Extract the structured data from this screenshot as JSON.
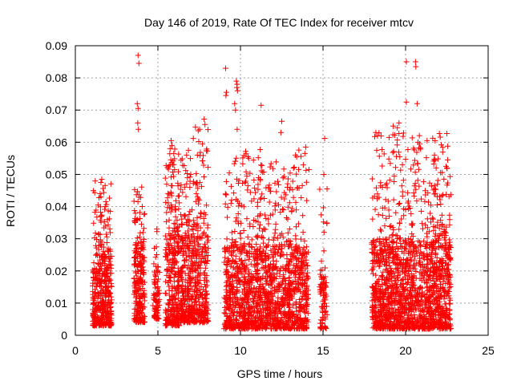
{
  "chart_data": {
    "type": "scatter",
    "title": "Day 146 of 2019, Rate Of TEC Index for receiver mtcv",
    "xlabel": "GPS time / hours",
    "ylabel": "ROTI / TECUs",
    "xlim": [
      0,
      25
    ],
    "ylim": [
      0,
      0.09
    ],
    "xticks": [
      0,
      5,
      10,
      15,
      20,
      25
    ],
    "xtick_labels": [
      "0",
      "5",
      "10",
      "15",
      "20",
      "25"
    ],
    "yticks": [
      0,
      0.01,
      0.02,
      0.03,
      0.04,
      0.05,
      0.06,
      0.07,
      0.08,
      0.09
    ],
    "ytick_labels": [
      "0",
      "0.01",
      "0.02",
      "0.03",
      "0.04",
      "0.05",
      "0.06",
      "0.07",
      "0.08",
      "0.09"
    ],
    "grid": true,
    "marker": "plus",
    "color": "#ff0000",
    "clusters": [
      {
        "x_start": 1.05,
        "x_end": 2.2,
        "y_low": 0.003,
        "y_bulk": 0.026,
        "y_max": 0.049,
        "count": 420
      },
      {
        "x_start": 3.55,
        "x_end": 4.2,
        "y_low": 0.004,
        "y_bulk": 0.03,
        "y_max": 0.047,
        "count": 260
      },
      {
        "x_start": 4.7,
        "x_end": 5.1,
        "y_low": 0.005,
        "y_bulk": 0.02,
        "y_max": 0.034,
        "count": 80
      },
      {
        "x_start": 5.45,
        "x_end": 6.3,
        "y_low": 0.003,
        "y_bulk": 0.035,
        "y_max": 0.06,
        "count": 320
      },
      {
        "x_start": 6.35,
        "x_end": 7.0,
        "y_low": 0.004,
        "y_bulk": 0.032,
        "y_max": 0.057,
        "count": 230
      },
      {
        "x_start": 7.0,
        "x_end": 8.05,
        "y_low": 0.004,
        "y_bulk": 0.035,
        "y_max": 0.067,
        "count": 330
      },
      {
        "x_start": 9.0,
        "x_end": 14.1,
        "y_low": 0.002,
        "y_bulk": 0.028,
        "y_max": 0.058,
        "count": 1500
      },
      {
        "x_start": 14.8,
        "x_end": 15.25,
        "y_low": 0.002,
        "y_bulk": 0.022,
        "y_max": 0.052,
        "count": 90
      },
      {
        "x_start": 17.95,
        "x_end": 22.75,
        "y_low": 0.002,
        "y_bulk": 0.03,
        "y_max": 0.063,
        "count": 1600
      }
    ],
    "outliers": [
      {
        "x": 3.8,
        "y": 0.087
      },
      {
        "x": 3.85,
        "y": 0.0845
      },
      {
        "x": 3.75,
        "y": 0.072
      },
      {
        "x": 3.8,
        "y": 0.0705
      },
      {
        "x": 3.78,
        "y": 0.066
      },
      {
        "x": 3.82,
        "y": 0.064
      },
      {
        "x": 4.05,
        "y": 0.04
      },
      {
        "x": 9.1,
        "y": 0.083
      },
      {
        "x": 9.15,
        "y": 0.0755
      },
      {
        "x": 9.12,
        "y": 0.0745
      },
      {
        "x": 9.75,
        "y": 0.079
      },
      {
        "x": 9.8,
        "y": 0.078
      },
      {
        "x": 9.78,
        "y": 0.077
      },
      {
        "x": 9.82,
        "y": 0.076
      },
      {
        "x": 9.65,
        "y": 0.072
      },
      {
        "x": 9.7,
        "y": 0.07
      },
      {
        "x": 9.8,
        "y": 0.064
      },
      {
        "x": 11.25,
        "y": 0.0715
      },
      {
        "x": 12.5,
        "y": 0.0665
      },
      {
        "x": 12.45,
        "y": 0.063
      },
      {
        "x": 15.1,
        "y": 0.0612
      },
      {
        "x": 15.05,
        "y": 0.05
      },
      {
        "x": 20.05,
        "y": 0.085
      },
      {
        "x": 20.6,
        "y": 0.085
      },
      {
        "x": 20.62,
        "y": 0.0835
      },
      {
        "x": 20.05,
        "y": 0.0725
      },
      {
        "x": 20.7,
        "y": 0.072
      },
      {
        "x": 19.25,
        "y": 0.065
      },
      {
        "x": 19.6,
        "y": 0.066
      },
      {
        "x": 19.5,
        "y": 0.0645
      },
      {
        "x": 18.2,
        "y": 0.063
      },
      {
        "x": 18.3,
        "y": 0.062
      },
      {
        "x": 18.25,
        "y": 0.0575
      },
      {
        "x": 19.0,
        "y": 0.0615
      },
      {
        "x": 20.75,
        "y": 0.06
      },
      {
        "x": 20.85,
        "y": 0.0595
      },
      {
        "x": 21.3,
        "y": 0.0605
      },
      {
        "x": 21.75,
        "y": 0.056
      },
      {
        "x": 22.45,
        "y": 0.0525
      },
      {
        "x": 22.5,
        "y": 0.052
      },
      {
        "x": 21.85,
        "y": 0.052
      },
      {
        "x": 19.65,
        "y": 0.0555
      },
      {
        "x": 10.45,
        "y": 0.0555
      },
      {
        "x": 10.5,
        "y": 0.055
      },
      {
        "x": 11.2,
        "y": 0.0485
      },
      {
        "x": 13.95,
        "y": 0.0585
      },
      {
        "x": 13.9,
        "y": 0.0565
      },
      {
        "x": 14.15,
        "y": 0.0515
      },
      {
        "x": 7.8,
        "y": 0.0672
      },
      {
        "x": 7.85,
        "y": 0.0655
      },
      {
        "x": 7.7,
        "y": 0.0595
      },
      {
        "x": 5.8,
        "y": 0.0605
      },
      {
        "x": 5.85,
        "y": 0.059
      },
      {
        "x": 6.85,
        "y": 0.0575
      },
      {
        "x": 1.6,
        "y": 0.0485
      },
      {
        "x": 1.55,
        "y": 0.0475
      },
      {
        "x": 1.5,
        "y": 0.044
      },
      {
        "x": 1.55,
        "y": 0.043
      },
      {
        "x": 1.85,
        "y": 0.0415
      }
    ]
  }
}
